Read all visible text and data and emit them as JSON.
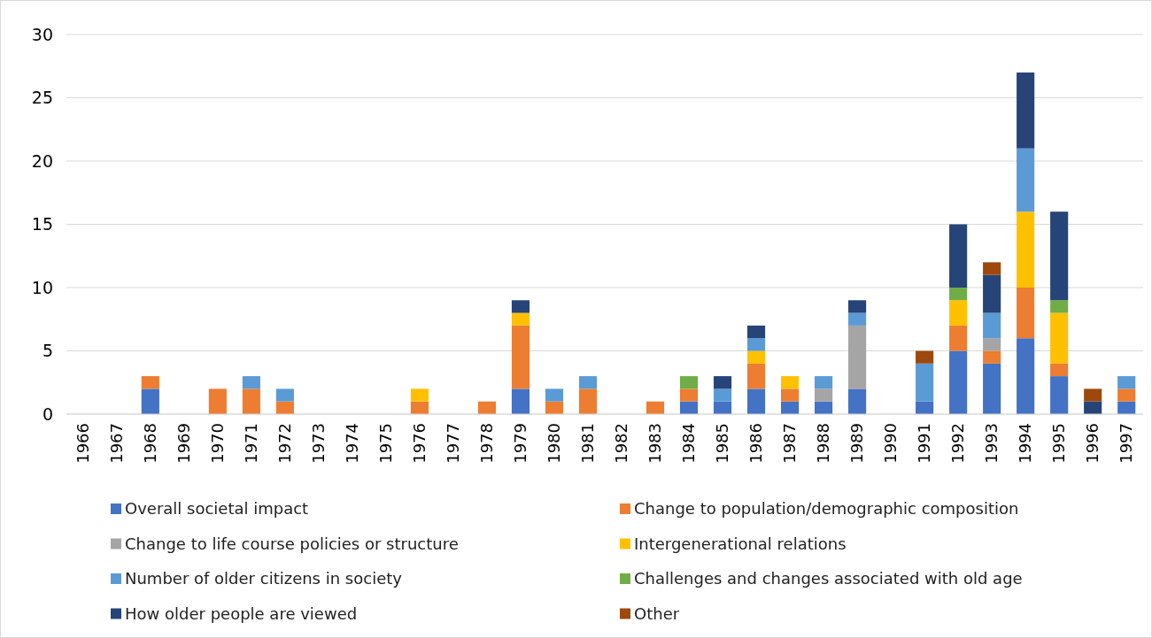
{
  "chart_data": {
    "type": "bar",
    "stacked": true,
    "grid": "y",
    "legend": "bottom",
    "categories": [
      "1966",
      "1967",
      "1968",
      "1969",
      "1970",
      "1971",
      "1972",
      "1973",
      "1974",
      "1975",
      "1976",
      "1977",
      "1978",
      "1979",
      "1980",
      "1981",
      "1982",
      "1983",
      "1984",
      "1985",
      "1986",
      "1987",
      "1988",
      "1989",
      "1990",
      "1991",
      "1992",
      "1993",
      "1994",
      "1995",
      "1996",
      "1997"
    ],
    "ylim": [
      0,
      30
    ],
    "yticks": [
      0,
      5,
      10,
      15,
      20,
      25,
      30
    ],
    "series": [
      {
        "name": "Overall societal impact",
        "color": "#4472c4",
        "values": [
          null,
          null,
          2,
          null,
          null,
          null,
          null,
          null,
          null,
          null,
          null,
          null,
          null,
          2,
          null,
          null,
          null,
          null,
          1,
          1,
          2,
          1,
          1,
          2,
          null,
          1,
          5,
          4,
          6,
          3,
          null,
          1
        ]
      },
      {
        "name": "Change to population/demographic composition",
        "color": "#ed7d31",
        "values": [
          null,
          null,
          1,
          null,
          2,
          2,
          1,
          null,
          null,
          null,
          1,
          null,
          1,
          5,
          1,
          2,
          null,
          1,
          1,
          null,
          2,
          1,
          null,
          null,
          null,
          null,
          2,
          1,
          4,
          1,
          null,
          1
        ]
      },
      {
        "name": "Change to life course policies or structure",
        "color": "#a5a5a5",
        "values": [
          null,
          null,
          null,
          null,
          null,
          null,
          null,
          null,
          null,
          null,
          null,
          null,
          null,
          null,
          null,
          null,
          null,
          null,
          null,
          null,
          null,
          null,
          1,
          5,
          null,
          null,
          null,
          1,
          null,
          null,
          null,
          null
        ]
      },
      {
        "name": "Intergenerational relations",
        "color": "#ffc000",
        "values": [
          null,
          null,
          null,
          null,
          null,
          null,
          null,
          null,
          null,
          null,
          1,
          null,
          null,
          1,
          null,
          null,
          null,
          null,
          null,
          null,
          1,
          1,
          null,
          null,
          null,
          null,
          2,
          null,
          6,
          4,
          null,
          null
        ]
      },
      {
        "name": "Number of older citizens in society",
        "color": "#5b9bd5",
        "values": [
          null,
          null,
          null,
          null,
          null,
          1,
          1,
          null,
          null,
          null,
          null,
          null,
          null,
          null,
          1,
          1,
          null,
          null,
          null,
          1,
          1,
          null,
          1,
          1,
          null,
          3,
          null,
          2,
          5,
          null,
          null,
          1
        ]
      },
      {
        "name": "Challenges and changes associated with old age",
        "color": "#70ad47",
        "values": [
          null,
          null,
          null,
          null,
          null,
          null,
          null,
          null,
          null,
          null,
          null,
          null,
          null,
          null,
          null,
          null,
          null,
          null,
          1,
          null,
          null,
          null,
          null,
          null,
          null,
          null,
          1,
          null,
          null,
          1,
          null,
          null
        ]
      },
      {
        "name": "How older people are viewed",
        "color": "#264478",
        "values": [
          null,
          null,
          null,
          null,
          null,
          null,
          null,
          null,
          null,
          null,
          null,
          null,
          null,
          1,
          null,
          null,
          null,
          null,
          null,
          1,
          1,
          null,
          null,
          1,
          null,
          null,
          5,
          3,
          6,
          7,
          1,
          null
        ]
      },
      {
        "name": "Other",
        "color": "#9e480e",
        "values": [
          null,
          null,
          null,
          null,
          null,
          null,
          null,
          null,
          null,
          null,
          null,
          null,
          null,
          null,
          null,
          null,
          null,
          null,
          null,
          null,
          null,
          null,
          null,
          null,
          null,
          1,
          null,
          1,
          null,
          null,
          1,
          null
        ]
      }
    ]
  }
}
